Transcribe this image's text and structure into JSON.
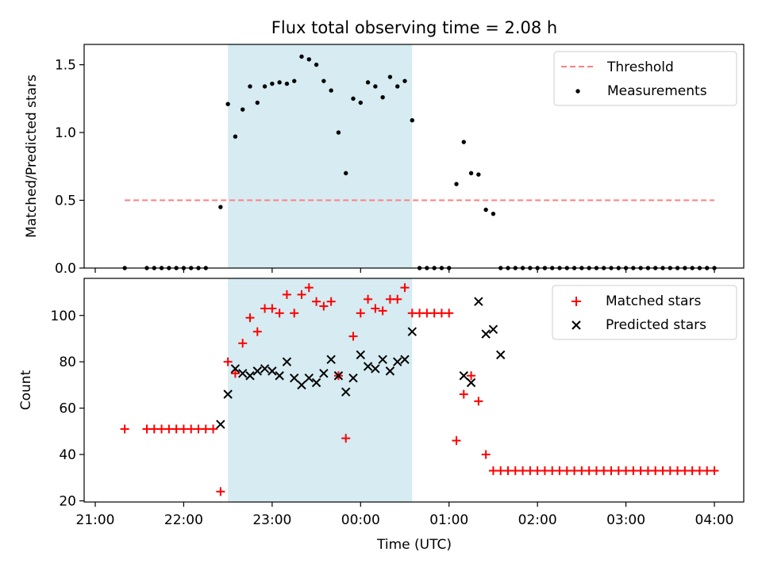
{
  "figure": {
    "title": "Flux total observing time = 2.08 h"
  },
  "colors": {
    "shade": "#add8e6",
    "threshold": "#ff7f7f",
    "measurement": "#000000",
    "matched": "#ff0000",
    "predicted": "#000000"
  },
  "chart_data": [
    {
      "type": "scatter",
      "ylabel": "Matched/Predicted stars",
      "xlabel": "",
      "xlim": [
        "21:00",
        "04:00"
      ],
      "ylim": [
        0,
        1.65
      ],
      "yticks": [
        "0.0",
        "0.5",
        "1.0",
        "1.5"
      ],
      "shaded_span": [
        "22:30",
        "00:35"
      ],
      "legend": {
        "position": "top-right",
        "entries": [
          "Threshold",
          "Measurements"
        ]
      },
      "threshold": {
        "name": "Threshold",
        "style": "dashed",
        "y": 0.5,
        "x_start": "21:20",
        "x_end": "04:00"
      },
      "series": [
        {
          "name": "Measurements",
          "marker": "dot",
          "x": [
            "21:20",
            "21:35",
            "21:40",
            "21:45",
            "21:50",
            "21:55",
            "22:00",
            "22:05",
            "22:10",
            "22:15",
            "22:25",
            "22:30",
            "22:35",
            "22:40",
            "22:45",
            "22:50",
            "22:55",
            "23:00",
            "23:05",
            "23:10",
            "23:15",
            "23:20",
            "23:25",
            "23:30",
            "23:35",
            "23:40",
            "23:45",
            "23:50",
            "23:55",
            "00:00",
            "00:05",
            "00:10",
            "00:15",
            "00:20",
            "00:25",
            "00:30",
            "00:35",
            "00:40",
            "00:45",
            "00:50",
            "00:55",
            "01:00",
            "01:05",
            "01:10",
            "01:15",
            "01:20",
            "01:25",
            "01:30",
            "01:35",
            "01:40",
            "01:45",
            "01:50",
            "01:55",
            "02:00",
            "02:05",
            "02:10",
            "02:15",
            "02:20",
            "02:25",
            "02:30",
            "02:35",
            "02:40",
            "02:45",
            "02:50",
            "02:55",
            "03:00",
            "03:05",
            "03:10",
            "03:15",
            "03:20",
            "03:25",
            "03:30",
            "03:35",
            "03:40",
            "03:45",
            "03:50",
            "03:55",
            "04:00"
          ],
          "y": [
            0,
            0,
            0,
            0,
            0,
            0,
            0,
            0,
            0,
            0,
            0.45,
            1.21,
            0.97,
            1.17,
            1.34,
            1.22,
            1.34,
            1.36,
            1.37,
            1.36,
            1.38,
            1.56,
            1.54,
            1.5,
            1.38,
            1.31,
            1.0,
            0.7,
            1.25,
            1.22,
            1.37,
            1.34,
            1.26,
            1.41,
            1.34,
            1.38,
            1.09,
            0,
            0,
            0,
            0,
            0,
            0.62,
            0.93,
            0.7,
            0.69,
            0.43,
            0.4,
            0,
            0,
            0,
            0,
            0,
            0,
            0,
            0,
            0,
            0,
            0,
            0,
            0,
            0,
            0,
            0,
            0,
            0,
            0,
            0,
            0,
            0,
            0,
            0,
            0,
            0,
            0,
            0,
            0,
            0
          ]
        }
      ]
    },
    {
      "type": "scatter",
      "ylabel": "Count",
      "xlabel": "Time (UTC)",
      "xlim": [
        "21:00",
        "04:00"
      ],
      "ylim": [
        19.5,
        116
      ],
      "yticks": [
        "20",
        "40",
        "60",
        "80",
        "100"
      ],
      "xticks": [
        "21:00",
        "22:00",
        "23:00",
        "00:00",
        "01:00",
        "02:00",
        "03:00",
        "04:00"
      ],
      "shaded_span": [
        "22:30",
        "00:35"
      ],
      "legend": {
        "position": "top-right",
        "entries": [
          "Matched stars",
          "Predicted stars"
        ]
      },
      "series": [
        {
          "name": "Matched stars",
          "marker": "plus",
          "x": [
            "21:20",
            "21:35",
            "21:40",
            "21:45",
            "21:50",
            "21:55",
            "22:00",
            "22:05",
            "22:10",
            "22:15",
            "22:20",
            "22:25",
            "22:30",
            "22:35",
            "22:40",
            "22:45",
            "22:50",
            "22:55",
            "23:00",
            "23:05",
            "23:10",
            "23:15",
            "23:20",
            "23:25",
            "23:30",
            "23:35",
            "23:40",
            "23:45",
            "23:50",
            "23:55",
            "00:00",
            "00:05",
            "00:10",
            "00:15",
            "00:20",
            "00:25",
            "00:30",
            "00:35",
            "00:40",
            "00:45",
            "00:50",
            "00:55",
            "01:00",
            "01:05",
            "01:10",
            "01:15",
            "01:20",
            "01:25",
            "01:30",
            "01:35",
            "01:40",
            "01:45",
            "01:50",
            "01:55",
            "02:00",
            "02:05",
            "02:10",
            "02:15",
            "02:20",
            "02:25",
            "02:30",
            "02:35",
            "02:40",
            "02:45",
            "02:50",
            "02:55",
            "03:00",
            "03:05",
            "03:10",
            "03:15",
            "03:20",
            "03:25",
            "03:30",
            "03:35",
            "03:40",
            "03:45",
            "03:50",
            "03:55",
            "04:00"
          ],
          "y": [
            51,
            51,
            51,
            51,
            51,
            51,
            51,
            51,
            51,
            51,
            51,
            24,
            80,
            75,
            88,
            99,
            93,
            103,
            103,
            101,
            109,
            101,
            109,
            112,
            106,
            104,
            106,
            74,
            47,
            91,
            101,
            107,
            103,
            102,
            107,
            107,
            112,
            101,
            101,
            101,
            101,
            101,
            101,
            46,
            66,
            74,
            63,
            40,
            33,
            33,
            33,
            33,
            33,
            33,
            33,
            33,
            33,
            33,
            33,
            33,
            33,
            33,
            33,
            33,
            33,
            33,
            33,
            33,
            33,
            33,
            33,
            33,
            33,
            33,
            33,
            33,
            33,
            33,
            33
          ]
        },
        {
          "name": "Predicted stars",
          "marker": "x",
          "x": [
            "22:25",
            "22:30",
            "22:35",
            "22:40",
            "22:45",
            "22:50",
            "22:55",
            "23:00",
            "23:05",
            "23:10",
            "23:15",
            "23:20",
            "23:25",
            "23:30",
            "23:35",
            "23:40",
            "23:45",
            "23:50",
            "23:55",
            "00:00",
            "00:05",
            "00:10",
            "00:15",
            "00:20",
            "00:25",
            "00:30",
            "00:35",
            "01:10",
            "01:15",
            "01:20",
            "01:25",
            "01:30",
            "01:35"
          ],
          "y": [
            53,
            66,
            77,
            75,
            74,
            76,
            77,
            76,
            74,
            80,
            73,
            70,
            73,
            71,
            75,
            81,
            74,
            67,
            73,
            83,
            78,
            77,
            81,
            76,
            80,
            81,
            93,
            74,
            71,
            106,
            92,
            94,
            83
          ]
        }
      ]
    }
  ]
}
